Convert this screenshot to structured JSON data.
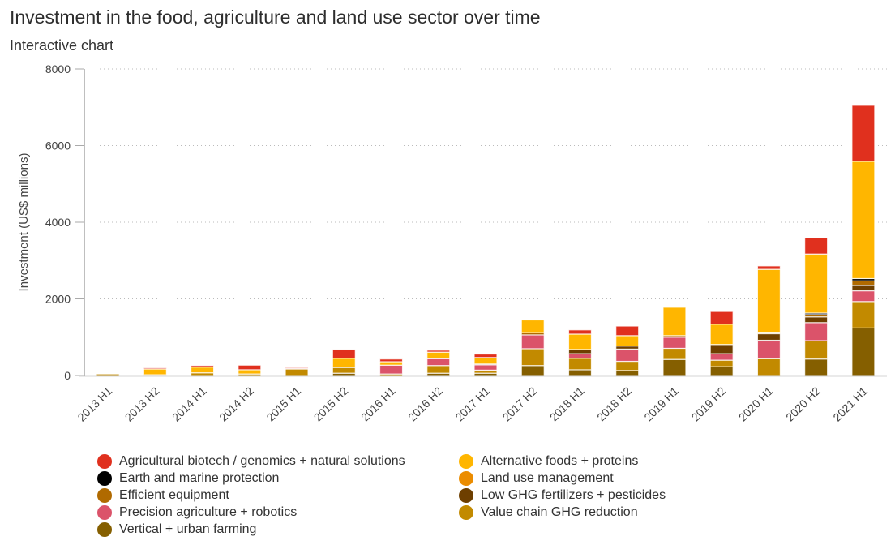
{
  "header": {
    "title": "Investment in the food, agriculture and land use sector over time",
    "subtitle": "Interactive chart"
  },
  "chart_data": {
    "type": "bar",
    "stacked": true,
    "title": "Investment in the food, agriculture and land use sector over time",
    "subtitle": "Interactive chart",
    "xlabel": "",
    "ylabel": "Investment (US$ millions)",
    "ylim": [
      0,
      8000
    ],
    "yticks": [
      0,
      2000,
      4000,
      6000,
      8000
    ],
    "grid": true,
    "legend_position": "bottom",
    "categories": [
      "2013 H1",
      "2013 H2",
      "2014 H1",
      "2014 H2",
      "2015 H1",
      "2015 H2",
      "2016 H1",
      "2016 H2",
      "2017 H1",
      "2017 H2",
      "2018 H1",
      "2018 H2",
      "2019 H1",
      "2019 H2",
      "2020 H1",
      "2020 H2",
      "2021 H1"
    ],
    "series": [
      {
        "name": "Vertical + urban farming",
        "color": "#855f00",
        "values": [
          0,
          0,
          0,
          0,
          0,
          60,
          0,
          60,
          60,
          260,
          150,
          130,
          420,
          230,
          0,
          430,
          1240
        ]
      },
      {
        "name": "Value chain GHG reduction",
        "color": "#c28a00",
        "values": [
          40,
          20,
          70,
          40,
          170,
          150,
          40,
          200,
          80,
          440,
          300,
          240,
          290,
          170,
          440,
          480,
          690
        ]
      },
      {
        "name": "Precision agriculture + robotics",
        "color": "#db536a",
        "values": [
          0,
          0,
          0,
          0,
          20,
          0,
          230,
          180,
          140,
          360,
          120,
          320,
          290,
          170,
          480,
          470,
          280
        ]
      },
      {
        "name": "Low GHG fertilizers + pesticides",
        "color": "#6e3f00",
        "values": [
          0,
          0,
          0,
          0,
          0,
          0,
          0,
          0,
          20,
          0,
          110,
          80,
          0,
          240,
          170,
          150,
          140
        ]
      },
      {
        "name": "Efficient equipment",
        "color": "#b06a00",
        "values": [
          0,
          0,
          0,
          0,
          0,
          0,
          0,
          0,
          0,
          60,
          0,
          0,
          40,
          0,
          40,
          60,
          120
        ]
      },
      {
        "name": "Land use management",
        "color": "#eb8c00",
        "values": [
          0,
          0,
          0,
          0,
          0,
          0,
          0,
          0,
          0,
          0,
          0,
          0,
          0,
          0,
          0,
          0,
          0
        ]
      },
      {
        "name": "Earth and marine protection",
        "color": "#000000",
        "values": [
          0,
          0,
          0,
          0,
          0,
          0,
          0,
          0,
          0,
          0,
          0,
          0,
          0,
          0,
          0,
          40,
          60
        ]
      },
      {
        "name": "Alternative foods + proteins",
        "color": "#ffb600",
        "values": [
          0,
          150,
          150,
          110,
          0,
          240,
          90,
          170,
          170,
          330,
          400,
          270,
          740,
          530,
          1640,
          1540,
          3060
        ]
      },
      {
        "name": "Agricultural biotech / genomics + natural solutions",
        "color": "#e0301e",
        "values": [
          0,
          30,
          40,
          120,
          20,
          230,
          70,
          50,
          90,
          0,
          110,
          250,
          0,
          330,
          90,
          420,
          1460
        ]
      }
    ]
  },
  "legend": {
    "items": [
      {
        "label": "Agricultural biotech / genomics + natural solutions",
        "color": "#e0301e"
      },
      {
        "label": "Alternative foods + proteins",
        "color": "#ffb600"
      },
      {
        "label": "Earth and marine protection",
        "color": "#000000"
      },
      {
        "label": "Land use management",
        "color": "#eb8c00"
      },
      {
        "label": "Efficient equipment",
        "color": "#b06a00"
      },
      {
        "label": "Low GHG fertilizers + pesticides",
        "color": "#6e3f00"
      },
      {
        "label": "Precision agriculture + robotics",
        "color": "#db536a"
      },
      {
        "label": "Value chain GHG reduction",
        "color": "#c28a00"
      },
      {
        "label": "Vertical + urban farming",
        "color": "#855f00"
      }
    ]
  }
}
